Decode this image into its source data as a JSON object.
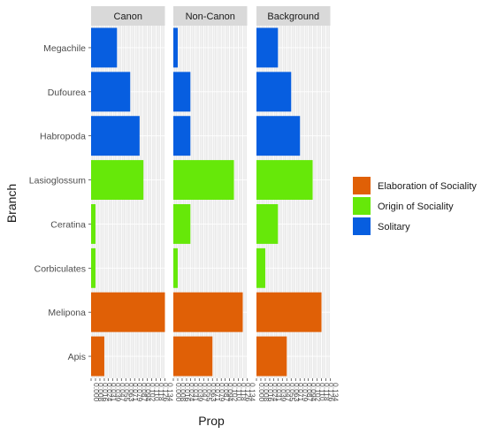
{
  "chart_data": {
    "type": "bar",
    "orientation": "horizontal",
    "xlabel": "Prop",
    "ylabel": "Branch",
    "facets": [
      "Canon",
      "Non-Canon",
      "Background"
    ],
    "categories": [
      "Megachile",
      "Dufourea",
      "Habropoda",
      "Lasioglossum",
      "Ceratina",
      "Corbiculates",
      "Melipona",
      "Apis"
    ],
    "group_of_category": [
      "Solitary",
      "Solitary",
      "Solitary",
      "Origin of Sociality",
      "Origin of Sociality",
      "Origin of Sociality",
      "Elaboration of Sociality",
      "Elaboration of Sociality"
    ],
    "legend": {
      "position": "right",
      "entries": [
        {
          "label": "Elaboration of Sociality",
          "color": "#e06006"
        },
        {
          "label": "Origin of Sociality",
          "color": "#66e809"
        },
        {
          "label": "Solitary",
          "color": "#075ee0"
        }
      ]
    },
    "values": {
      "Canon": [
        0.047,
        0.071,
        0.088,
        0.095,
        0.008,
        0.008,
        0.134,
        0.024
      ],
      "Non-Canon": [
        0.008,
        0.031,
        0.031,
        0.11,
        0.031,
        0.008,
        0.126,
        0.071
      ],
      "Background": [
        0.039,
        0.063,
        0.079,
        0.102,
        0.039,
        0.016,
        0.118,
        0.055
      ]
    },
    "xlim": [
      0,
      0.134
    ],
    "x_ticks": [
      "0.000",
      "0.008",
      "0.016",
      "0.024",
      "0.031",
      "0.039",
      "0.047",
      "0.055",
      "0.063",
      "0.071",
      "0.079",
      "0.087",
      "0.094",
      "0.102",
      "0.110",
      "0.118",
      "0.126",
      "0.134"
    ],
    "grid": true
  }
}
